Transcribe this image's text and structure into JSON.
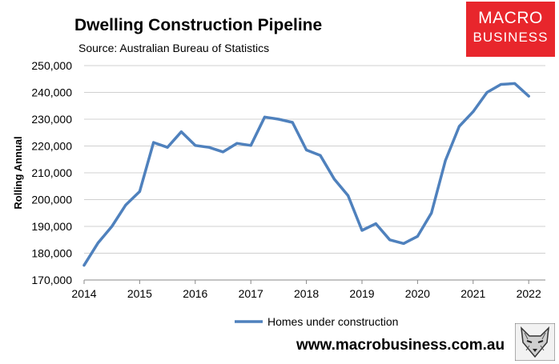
{
  "header": {
    "title": "Dwelling Construction Pipeline",
    "subtitle": "Source: Australian Bureau of Statistics"
  },
  "logo": {
    "line1": "MACRO",
    "line2": "BUSINESS",
    "color": "#e8262c"
  },
  "footer": {
    "url": "www.macrobusiness.com.au"
  },
  "fox_icon": "fox-mascot-icon",
  "chart_data": {
    "type": "line",
    "title": "Dwelling Construction Pipeline",
    "xlabel": "",
    "ylabel": "Rolling Annual",
    "xlim": [
      2014,
      2022.3
    ],
    "ylim": [
      170000,
      250000
    ],
    "y_ticks": [
      170000,
      180000,
      190000,
      200000,
      210000,
      220000,
      230000,
      240000,
      250000
    ],
    "y_tick_labels": [
      "170,000",
      "180,000",
      "190,000",
      "200,000",
      "210,000",
      "220,000",
      "230,000",
      "240,000",
      "250,000"
    ],
    "x_ticks": [
      2014,
      2015,
      2016,
      2017,
      2018,
      2019,
      2020,
      2021,
      2022
    ],
    "x_tick_labels": [
      "2014",
      "2015",
      "2016",
      "2017",
      "2018",
      "2019",
      "2020",
      "2021",
      "2022"
    ],
    "grid": true,
    "legend_position": "bottom",
    "series": [
      {
        "name": "Homes under construction",
        "color": "#4f81bd",
        "x": [
          2014.0,
          2014.25,
          2014.5,
          2014.75,
          2015.0,
          2015.25,
          2015.5,
          2015.75,
          2016.0,
          2016.25,
          2016.5,
          2016.75,
          2017.0,
          2017.25,
          2017.5,
          2017.75,
          2018.0,
          2018.25,
          2018.5,
          2018.75,
          2019.0,
          2019.25,
          2019.5,
          2019.75,
          2020.0,
          2020.25,
          2020.5,
          2020.75,
          2021.0,
          2021.25,
          2021.5,
          2021.75,
          2022.0
        ],
        "values": [
          175500,
          183800,
          190000,
          198000,
          203000,
          221300,
          219500,
          225300,
          220200,
          219500,
          217800,
          221000,
          220200,
          230800,
          230000,
          228800,
          218500,
          216500,
          207700,
          201500,
          188500,
          191000,
          185000,
          183600,
          186300,
          195000,
          214500,
          227300,
          232800,
          240000,
          243000,
          243300,
          238600
        ]
      }
    ]
  }
}
